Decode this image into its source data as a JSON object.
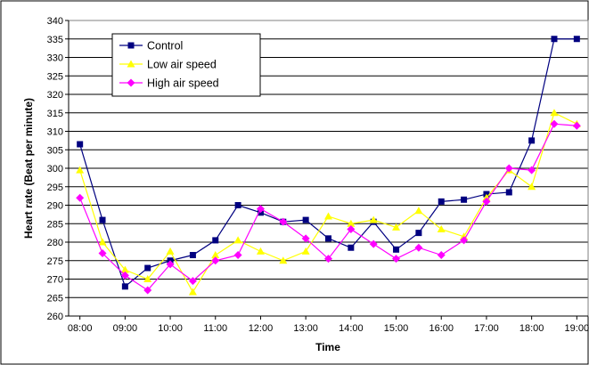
{
  "chart_data": {
    "type": "line",
    "title": "",
    "xlabel": "Time",
    "ylabel": "Heart rate (Beat per minute)",
    "ylim": [
      260,
      340
    ],
    "ytick_step": 5,
    "x": [
      8,
      8.5,
      9,
      9.5,
      10,
      10.5,
      11,
      11.5,
      12,
      12.5,
      13,
      13.5,
      14,
      14.5,
      15,
      15.5,
      16,
      16.5,
      17,
      17.5,
      18,
      18.5,
      19
    ],
    "xlim": [
      7.75,
      19.25
    ],
    "xticks": [
      8,
      9,
      10,
      11,
      12,
      13,
      14,
      15,
      16,
      17,
      18,
      19
    ],
    "xtick_labels": [
      "08:00",
      "09:00",
      "10:00",
      "11:00",
      "12:00",
      "13:00",
      "14:00",
      "15:00",
      "16:00",
      "17:00",
      "18:00",
      "19:00"
    ],
    "grid": "horizontal",
    "legend_position": "top-left",
    "series": [
      {
        "name": "Control",
        "color": "#000080",
        "marker": "square",
        "values": [
          306.5,
          286,
          268,
          273,
          275,
          276.5,
          280.5,
          290,
          288,
          285.5,
          286,
          281,
          278.5,
          285.5,
          278,
          282.5,
          291,
          291.5,
          293,
          293.5,
          307.5,
          335,
          335
        ]
      },
      {
        "name": "Low air speed",
        "color": "#ffff00",
        "marker": "triangle",
        "values": [
          299.5,
          280,
          272.5,
          270,
          277.5,
          266.5,
          276.5,
          280.5,
          277.5,
          275,
          277.5,
          287,
          285,
          286,
          284,
          288.5,
          283.5,
          281.5,
          292,
          299.5,
          295,
          315,
          312
        ]
      },
      {
        "name": "High air speed",
        "color": "#ff00ff",
        "marker": "diamond",
        "values": [
          292,
          277,
          271,
          267,
          274,
          269.5,
          275,
          276.5,
          289,
          285.5,
          281,
          275.5,
          283.5,
          279.5,
          275.5,
          278.5,
          276.5,
          280.5,
          291,
          300,
          299.5,
          312,
          311.5
        ]
      }
    ]
  }
}
